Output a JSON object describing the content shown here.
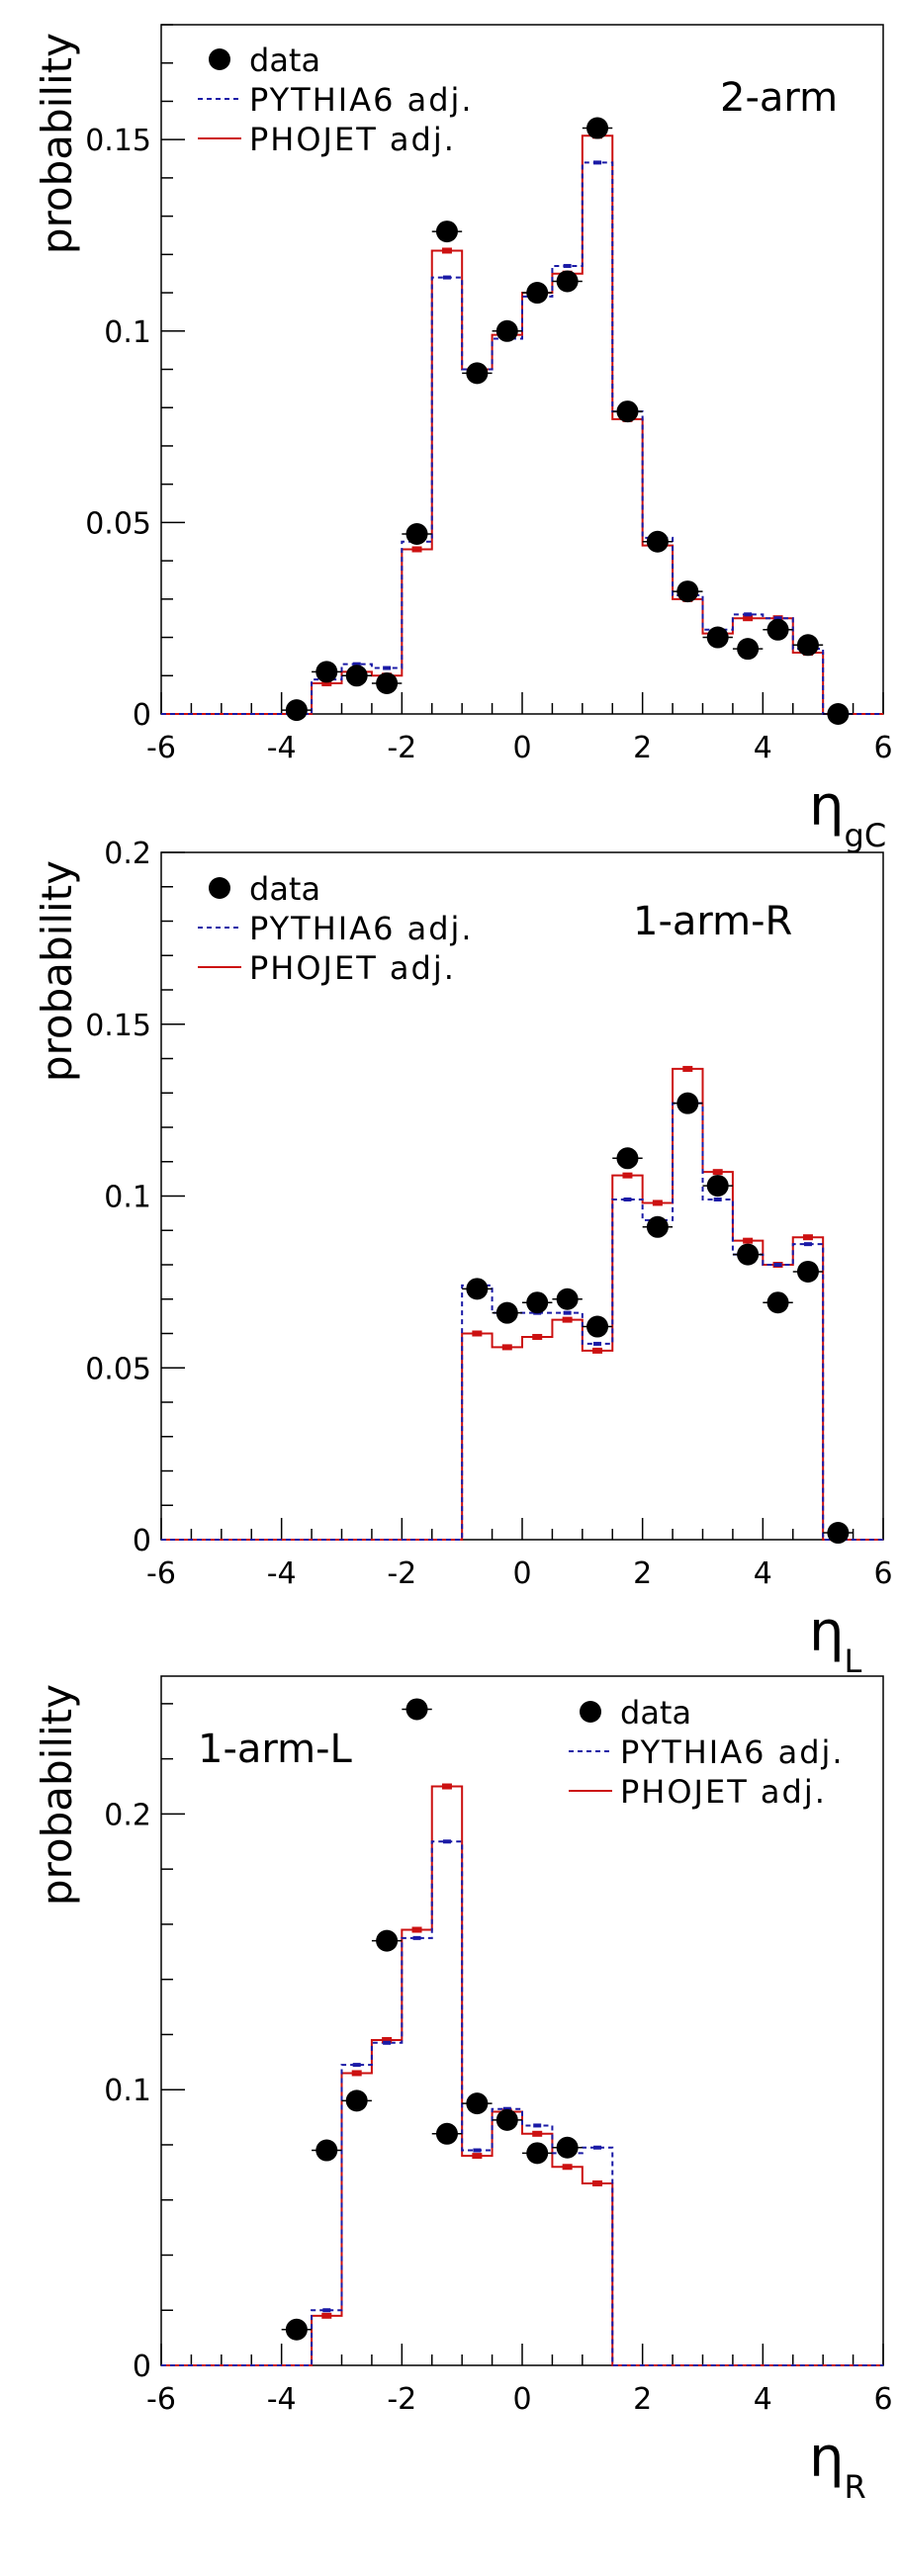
{
  "chart_data": [
    {
      "type": "histogram",
      "panel_label": "2-arm",
      "ylabel": "probability",
      "xlabel_main": "η",
      "xlabel_sub": "gC",
      "xlim": [
        -6,
        6
      ],
      "ylim": [
        0,
        0.18
      ],
      "x_ticks": [
        -6,
        -4,
        -2,
        0,
        2,
        4,
        6
      ],
      "y_ticks": [
        0,
        0.05,
        0.1,
        0.15
      ],
      "y_tick_labels": [
        "0",
        "0.05",
        "0.1",
        "0.15"
      ],
      "legend": {
        "position": "top-left",
        "entries": [
          "data",
          "PYTHIA6 adj.",
          "PHOJET adj."
        ]
      },
      "bin_edges": [
        -6,
        -5.5,
        -5,
        -4.5,
        -4,
        -3.5,
        -3,
        -2.5,
        -2,
        -1.5,
        -1,
        -0.5,
        0,
        0.5,
        1,
        1.5,
        2,
        2.5,
        3,
        3.5,
        4,
        4.5,
        5,
        5.5,
        6
      ],
      "series": [
        {
          "name": "data",
          "x": [
            -3.75,
            -3.25,
            -2.75,
            -2.25,
            -1.75,
            -1.25,
            -0.75,
            -0.25,
            0.25,
            0.75,
            1.25,
            1.75,
            2.25,
            2.75,
            3.25,
            3.75,
            4.25,
            4.75,
            5.25
          ],
          "values": [
            0.001,
            0.011,
            0.01,
            0.008,
            0.047,
            0.126,
            0.089,
            0.1,
            0.11,
            0.113,
            0.153,
            0.079,
            0.045,
            0.032,
            0.02,
            0.017,
            0.022,
            0.018,
            0.0
          ]
        },
        {
          "name": "PYTHIA6 adj.",
          "values": [
            0,
            0,
            0,
            0,
            0,
            0.009,
            0.013,
            0.012,
            0.045,
            0.114,
            0.09,
            0.098,
            0.109,
            0.117,
            0.144,
            0.079,
            0.046,
            0.031,
            0.022,
            0.026,
            0.025,
            0.017,
            0,
            0
          ]
        },
        {
          "name": "PHOJET adj.",
          "values": [
            0,
            0,
            0,
            0,
            0,
            0.008,
            0.011,
            0.01,
            0.043,
            0.121,
            0.09,
            0.099,
            0.11,
            0.115,
            0.151,
            0.077,
            0.044,
            0.03,
            0.021,
            0.025,
            0.025,
            0.016,
            0,
            0
          ]
        }
      ]
    },
    {
      "type": "histogram",
      "panel_label": "1-arm-R",
      "ylabel": "probability",
      "xlabel_main": "η",
      "xlabel_sub": "L",
      "xlim": [
        -6,
        6
      ],
      "ylim": [
        0,
        0.2
      ],
      "x_ticks": [
        -6,
        -4,
        -2,
        0,
        2,
        4,
        6
      ],
      "y_ticks": [
        0,
        0.05,
        0.1,
        0.15,
        0.2
      ],
      "y_tick_labels": [
        "0",
        "0.05",
        "0.1",
        "0.15",
        "0.2"
      ],
      "legend": {
        "position": "top-left",
        "entries": [
          "data",
          "PYTHIA6 adj.",
          "PHOJET adj."
        ]
      },
      "bin_edges": [
        -6,
        -5.5,
        -5,
        -4.5,
        -4,
        -3.5,
        -3,
        -2.5,
        -2,
        -1.5,
        -1,
        -0.5,
        0,
        0.5,
        1,
        1.5,
        2,
        2.5,
        3,
        3.5,
        4,
        4.5,
        5,
        5.5,
        6
      ],
      "series": [
        {
          "name": "data",
          "x": [
            -0.75,
            -0.25,
            0.25,
            0.75,
            1.25,
            1.75,
            2.25,
            2.75,
            3.25,
            3.75,
            4.25,
            4.75,
            5.25
          ],
          "values": [
            0.073,
            0.066,
            0.069,
            0.07,
            0.062,
            0.111,
            0.091,
            0.127,
            0.103,
            0.083,
            0.069,
            0.078,
            0.002
          ]
        },
        {
          "name": "PYTHIA6 adj.",
          "values": [
            0,
            0,
            0,
            0,
            0,
            0,
            0,
            0,
            0,
            0,
            0.074,
            0.066,
            0.066,
            0.066,
            0.057,
            0.099,
            0.093,
            0.127,
            0.099,
            0.083,
            0.08,
            0.086,
            0,
            0
          ]
        },
        {
          "name": "PHOJET adj.",
          "values": [
            0,
            0,
            0,
            0,
            0,
            0,
            0,
            0,
            0,
            0,
            0.06,
            0.056,
            0.059,
            0.064,
            0.055,
            0.106,
            0.098,
            0.137,
            0.107,
            0.087,
            0.08,
            0.088,
            0,
            0
          ]
        }
      ]
    },
    {
      "type": "histogram",
      "panel_label": "1-arm-L",
      "ylabel": "probability",
      "xlabel_main": "η",
      "xlabel_sub": "R",
      "xlim": [
        -6,
        6
      ],
      "ylim": [
        0,
        0.25
      ],
      "x_ticks": [
        -6,
        -4,
        -2,
        0,
        2,
        4,
        6
      ],
      "y_ticks": [
        0,
        0.1,
        0.2
      ],
      "y_tick_labels": [
        "0",
        "0.1",
        "0.2"
      ],
      "legend": {
        "position": "top-right",
        "entries": [
          "data",
          "PYTHIA6 adj.",
          "PHOJET adj."
        ]
      },
      "bin_edges": [
        -6,
        -5.5,
        -5,
        -4.5,
        -4,
        -3.5,
        -3,
        -2.5,
        -2,
        -1.5,
        -1,
        -0.5,
        0,
        0.5,
        1,
        1.5,
        2,
        2.5,
        3,
        3.5,
        4,
        4.5,
        5,
        5.5,
        6
      ],
      "series": [
        {
          "name": "data",
          "x": [
            -3.75,
            -3.25,
            -2.75,
            -2.25,
            -1.75,
            -1.25,
            -0.75,
            -0.25,
            0.25,
            0.75
          ],
          "values": [
            0.013,
            0.078,
            0.096,
            0.154,
            0.238,
            0.084,
            0.095,
            0.089,
            0.077,
            0.079
          ]
        },
        {
          "name": "PYTHIA6 adj.",
          "values": [
            0,
            0,
            0,
            0,
            0,
            0.02,
            0.109,
            0.117,
            0.155,
            0.19,
            0.078,
            0.093,
            0.087,
            0.077,
            0.079,
            0,
            0,
            0,
            0,
            0,
            0,
            0,
            0,
            0
          ]
        },
        {
          "name": "PHOJET adj.",
          "values": [
            0,
            0,
            0,
            0,
            0,
            0.018,
            0.106,
            0.118,
            0.158,
            0.21,
            0.076,
            0.092,
            0.084,
            0.072,
            0.066,
            0,
            0,
            0,
            0,
            0,
            0,
            0,
            0,
            0
          ]
        }
      ]
    }
  ]
}
